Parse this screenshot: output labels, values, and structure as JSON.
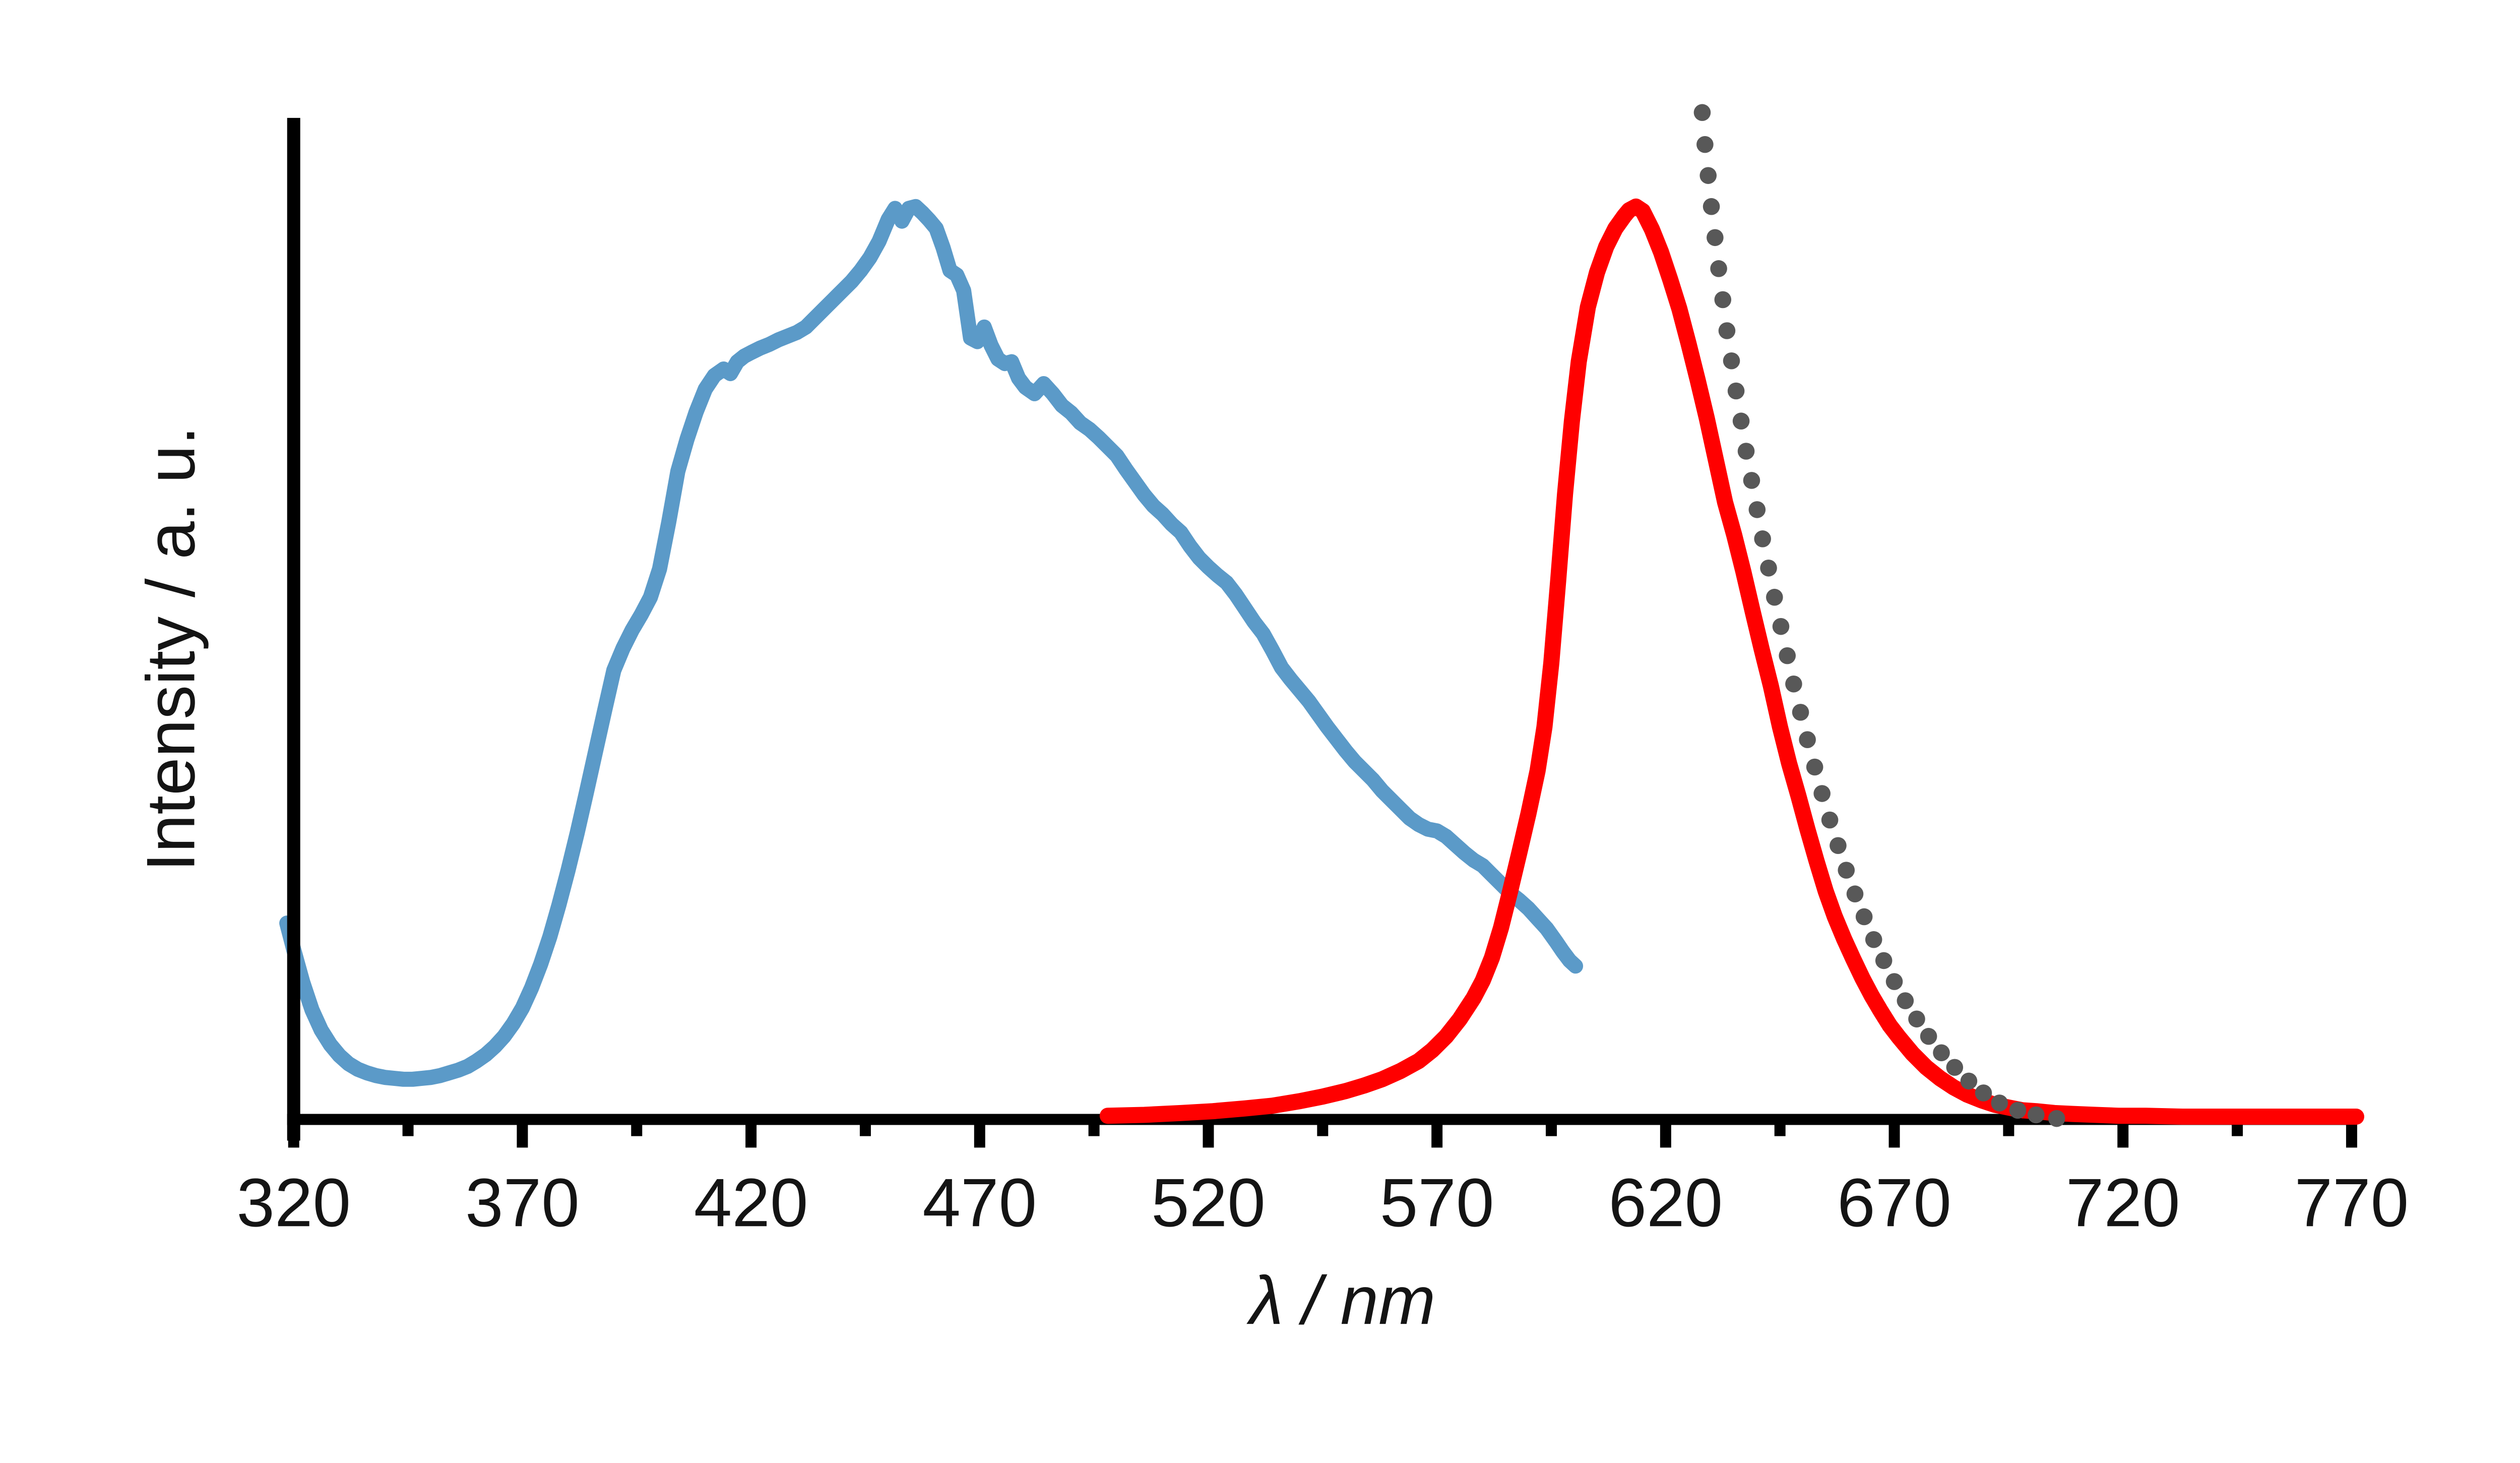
{
  "figure": {
    "background": "#ffffff",
    "description": "Spectra plot: broad blue solid curve (left), narrow red solid curve (right), grey dotted decay curve overlapping red peak region. No title, no legend, no grid."
  },
  "chart_data": {
    "type": "line",
    "title": "",
    "xlabel": "λ / nm",
    "ylabel": "Intensity / a. u.",
    "xlim": [
      318,
      772
    ],
    "ylim": [
      0,
      1.15
    ],
    "grid": false,
    "legend": null,
    "x_major_ticks": [
      320,
      370,
      420,
      470,
      520,
      570,
      620,
      670,
      720,
      770
    ],
    "x_minor_ticks": [
      345,
      395,
      445,
      495,
      545,
      595,
      645,
      695,
      745
    ],
    "y_ticks": [],
    "axis_color": "#000000",
    "text_color": "#141414",
    "series": [
      {
        "name": "blue solid curve",
        "color": "#5b9ac8",
        "style": "solid",
        "line_width": 7.5,
        "points": [
          [
            318.5,
            0.215
          ],
          [
            320,
            0.186
          ],
          [
            322,
            0.15
          ],
          [
            324,
            0.12
          ],
          [
            326,
            0.098
          ],
          [
            328,
            0.082
          ],
          [
            330,
            0.07
          ],
          [
            332,
            0.061
          ],
          [
            334,
            0.055
          ],
          [
            336,
            0.051
          ],
          [
            338,
            0.048
          ],
          [
            340,
            0.046
          ],
          [
            342,
            0.045
          ],
          [
            344,
            0.044
          ],
          [
            346,
            0.044
          ],
          [
            348,
            0.045
          ],
          [
            350,
            0.046
          ],
          [
            352,
            0.048
          ],
          [
            354,
            0.051
          ],
          [
            356,
            0.054
          ],
          [
            358,
            0.058
          ],
          [
            360,
            0.064
          ],
          [
            362,
            0.071
          ],
          [
            364,
            0.08
          ],
          [
            366,
            0.091
          ],
          [
            368,
            0.105
          ],
          [
            370,
            0.122
          ],
          [
            372,
            0.144
          ],
          [
            374,
            0.17
          ],
          [
            376,
            0.2
          ],
          [
            378,
            0.235
          ],
          [
            380,
            0.273
          ],
          [
            382,
            0.314
          ],
          [
            384,
            0.358
          ],
          [
            386,
            0.403
          ],
          [
            388,
            0.448
          ],
          [
            390,
            0.492
          ],
          [
            392,
            0.516
          ],
          [
            394,
            0.536
          ],
          [
            396,
            0.553
          ],
          [
            398,
            0.572
          ],
          [
            400,
            0.603
          ],
          [
            402,
            0.654
          ],
          [
            404,
            0.71
          ],
          [
            406,
            0.745
          ],
          [
            408,
            0.775
          ],
          [
            410,
            0.8
          ],
          [
            412,
            0.815
          ],
          [
            414,
            0.822
          ],
          [
            415.5,
            0.817
          ],
          [
            417,
            0.83
          ],
          [
            418.5,
            0.836
          ],
          [
            420,
            0.84
          ],
          [
            422,
            0.845
          ],
          [
            424,
            0.849
          ],
          [
            426,
            0.854
          ],
          [
            428,
            0.858
          ],
          [
            430,
            0.862
          ],
          [
            432,
            0.868
          ],
          [
            434,
            0.878
          ],
          [
            436,
            0.888
          ],
          [
            438,
            0.898
          ],
          [
            440,
            0.908
          ],
          [
            442,
            0.918
          ],
          [
            444,
            0.93
          ],
          [
            446,
            0.944
          ],
          [
            448,
            0.962
          ],
          [
            450,
            0.986
          ],
          [
            451.5,
            0.998
          ],
          [
            453,
            0.984
          ],
          [
            454.5,
            0.998
          ],
          [
            456,
            1.0
          ],
          [
            457.5,
            0.993
          ],
          [
            459,
            0.985
          ],
          [
            460.5,
            0.976
          ],
          [
            462,
            0.955
          ],
          [
            463.5,
            0.93
          ],
          [
            465,
            0.925
          ],
          [
            466.5,
            0.908
          ],
          [
            468,
            0.856
          ],
          [
            469.5,
            0.852
          ],
          [
            471,
            0.868
          ],
          [
            472.5,
            0.848
          ],
          [
            474,
            0.833
          ],
          [
            475.5,
            0.828
          ],
          [
            477,
            0.83
          ],
          [
            478.5,
            0.812
          ],
          [
            480,
            0.802
          ],
          [
            482,
            0.795
          ],
          [
            484,
            0.806
          ],
          [
            486,
            0.795
          ],
          [
            488,
            0.782
          ],
          [
            490,
            0.774
          ],
          [
            492,
            0.763
          ],
          [
            494,
            0.756
          ],
          [
            496,
            0.747
          ],
          [
            498,
            0.737
          ],
          [
            500,
            0.727
          ],
          [
            502,
            0.712
          ],
          [
            504,
            0.698
          ],
          [
            506,
            0.684
          ],
          [
            508,
            0.672
          ],
          [
            510,
            0.663
          ],
          [
            512,
            0.652
          ],
          [
            514,
            0.643
          ],
          [
            516,
            0.628
          ],
          [
            518,
            0.615
          ],
          [
            520,
            0.605
          ],
          [
            522,
            0.596
          ],
          [
            524,
            0.588
          ],
          [
            526,
            0.575
          ],
          [
            528,
            0.56
          ],
          [
            530,
            0.545
          ],
          [
            532,
            0.532
          ],
          [
            534,
            0.514
          ],
          [
            536,
            0.495
          ],
          [
            538,
            0.482
          ],
          [
            540,
            0.47
          ],
          [
            542,
            0.458
          ],
          [
            544,
            0.444
          ],
          [
            546,
            0.43
          ],
          [
            548,
            0.417
          ],
          [
            550,
            0.404
          ],
          [
            552,
            0.392
          ],
          [
            554,
            0.382
          ],
          [
            556,
            0.372
          ],
          [
            558,
            0.36
          ],
          [
            560,
            0.35
          ],
          [
            562,
            0.34
          ],
          [
            564,
            0.33
          ],
          [
            566,
            0.323
          ],
          [
            568,
            0.318
          ],
          [
            570,
            0.316
          ],
          [
            572,
            0.31
          ],
          [
            574,
            0.301
          ],
          [
            576,
            0.292
          ],
          [
            578,
            0.284
          ],
          [
            580,
            0.278
          ],
          [
            582,
            0.268
          ],
          [
            584,
            0.258
          ],
          [
            586,
            0.248
          ],
          [
            588,
            0.24
          ],
          [
            590,
            0.231
          ],
          [
            592,
            0.22
          ],
          [
            594,
            0.209
          ],
          [
            596,
            0.195
          ],
          [
            597.5,
            0.184
          ],
          [
            599,
            0.174
          ],
          [
            600.3,
            0.168
          ]
        ]
      },
      {
        "name": "red solid curve",
        "color": "#ff0000",
        "style": "solid",
        "line_width": 8,
        "points": [
          [
            498,
            0.004
          ],
          [
            506,
            0.005
          ],
          [
            514,
            0.007
          ],
          [
            521,
            0.009
          ],
          [
            528,
            0.012
          ],
          [
            534,
            0.015
          ],
          [
            540,
            0.02
          ],
          [
            545,
            0.025
          ],
          [
            550,
            0.031
          ],
          [
            554,
            0.037
          ],
          [
            558,
            0.044
          ],
          [
            562,
            0.053
          ],
          [
            566,
            0.064
          ],
          [
            569,
            0.076
          ],
          [
            572,
            0.091
          ],
          [
            575,
            0.11
          ],
          [
            578,
            0.133
          ],
          [
            580,
            0.152
          ],
          [
            582,
            0.177
          ],
          [
            584,
            0.21
          ],
          [
            586,
            0.25
          ],
          [
            588,
            0.292
          ],
          [
            590,
            0.335
          ],
          [
            592,
            0.382
          ],
          [
            593.5,
            0.43
          ],
          [
            595,
            0.5
          ],
          [
            596.5,
            0.59
          ],
          [
            598,
            0.685
          ],
          [
            599.5,
            0.765
          ],
          [
            601,
            0.83
          ],
          [
            603,
            0.89
          ],
          [
            605,
            0.928
          ],
          [
            607,
            0.956
          ],
          [
            609,
            0.976
          ],
          [
            611,
            0.99
          ],
          [
            612,
            0.996
          ],
          [
            613.5,
            1.0
          ],
          [
            615,
            0.995
          ],
          [
            617,
            0.975
          ],
          [
            619,
            0.95
          ],
          [
            621,
            0.92
          ],
          [
            623,
            0.888
          ],
          [
            625,
            0.85
          ],
          [
            627,
            0.81
          ],
          [
            629,
            0.768
          ],
          [
            631,
            0.722
          ],
          [
            633,
            0.676
          ],
          [
            635,
            0.64
          ],
          [
            637,
            0.6
          ],
          [
            639,
            0.557
          ],
          [
            641,
            0.515
          ],
          [
            643,
            0.475
          ],
          [
            645,
            0.43
          ],
          [
            647,
            0.39
          ],
          [
            649,
            0.355
          ],
          [
            651,
            0.318
          ],
          [
            653,
            0.283
          ],
          [
            655,
            0.25
          ],
          [
            657,
            0.222
          ],
          [
            659,
            0.198
          ],
          [
            661,
            0.176
          ],
          [
            663,
            0.155
          ],
          [
            665,
            0.136
          ],
          [
            667,
            0.119
          ],
          [
            669,
            0.103
          ],
          [
            671,
            0.09
          ],
          [
            674,
            0.072
          ],
          [
            677,
            0.057
          ],
          [
            680,
            0.045
          ],
          [
            683,
            0.035
          ],
          [
            686,
            0.027
          ],
          [
            689,
            0.021
          ],
          [
            692,
            0.016
          ],
          [
            695,
            0.013
          ],
          [
            698,
            0.01
          ],
          [
            701,
            0.009
          ],
          [
            705,
            0.007
          ],
          [
            709,
            0.006
          ],
          [
            714,
            0.005
          ],
          [
            719,
            0.004
          ],
          [
            725,
            0.004
          ],
          [
            733,
            0.003
          ],
          [
            742,
            0.003
          ],
          [
            752,
            0.003
          ],
          [
            762,
            0.003
          ],
          [
            771,
            0.003
          ]
        ]
      },
      {
        "name": "grey dotted curve",
        "color": "#585858",
        "style": "dotted",
        "dot_radius": 4.2,
        "points": [
          [
            628,
            1.103
          ],
          [
            628.6,
            1.068
          ],
          [
            629.3,
            1.034
          ],
          [
            630,
            1.0
          ],
          [
            630.8,
            0.966
          ],
          [
            631.6,
            0.932
          ],
          [
            632.5,
            0.898
          ],
          [
            633.4,
            0.864
          ],
          [
            634.4,
            0.831
          ],
          [
            635.4,
            0.798
          ],
          [
            636.5,
            0.765
          ],
          [
            637.6,
            0.732
          ],
          [
            638.8,
            0.7
          ],
          [
            640,
            0.668
          ],
          [
            641.2,
            0.636
          ],
          [
            642.5,
            0.604
          ],
          [
            643.8,
            0.572
          ],
          [
            645.2,
            0.54
          ],
          [
            646.6,
            0.508
          ],
          [
            648,
            0.477
          ],
          [
            649.5,
            0.446
          ],
          [
            651,
            0.416
          ],
          [
            652.6,
            0.386
          ],
          [
            654.2,
            0.357
          ],
          [
            655.9,
            0.328
          ],
          [
            657.7,
            0.3
          ],
          [
            659.5,
            0.273
          ],
          [
            661.4,
            0.247
          ],
          [
            663.4,
            0.222
          ],
          [
            665.5,
            0.197
          ],
          [
            667.7,
            0.174
          ],
          [
            670,
            0.151
          ],
          [
            672.4,
            0.13
          ],
          [
            674.9,
            0.11
          ],
          [
            677.5,
            0.091
          ],
          [
            680.3,
            0.073
          ],
          [
            683.2,
            0.057
          ],
          [
            686.3,
            0.042
          ],
          [
            689.5,
            0.029
          ],
          [
            693,
            0.018
          ],
          [
            697,
            0.01
          ],
          [
            701,
            0.005
          ],
          [
            705.5,
            0.001
          ]
        ]
      }
    ]
  }
}
